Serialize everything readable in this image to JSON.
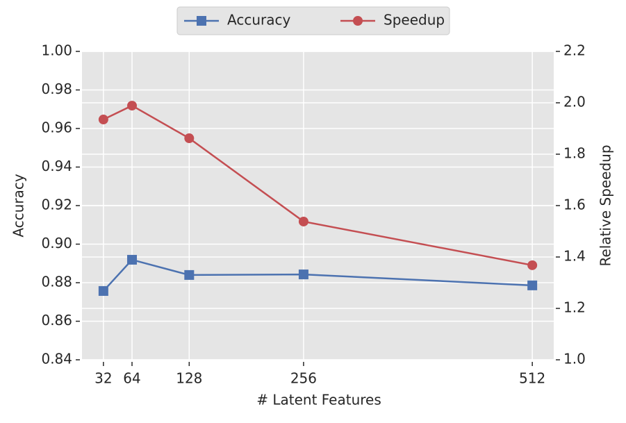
{
  "chart_data": {
    "type": "line",
    "x_label": "# Latent Features",
    "y_label": "Accuracy",
    "y2_label": "Relative Speedup",
    "x": [
      32,
      64,
      128,
      256,
      512
    ],
    "xlim": [
      8,
      536
    ],
    "xticks": [
      32,
      64,
      128,
      256,
      512
    ],
    "ylim": [
      0.84,
      1.0
    ],
    "yticks": [
      0.84,
      0.86,
      0.88,
      {
        "value": 0.9,
        "label": "0.90"
      },
      0.92,
      0.94,
      0.96,
      0.98,
      {
        "value": 1.0,
        "label": "1.00"
      }
    ],
    "y2lim": [
      1.0,
      2.2
    ],
    "y2ticks": [
      {
        "value": 1.0,
        "label": "1.0"
      },
      1.2,
      1.4,
      1.6,
      1.8,
      {
        "value": 2.0,
        "label": "2.0"
      },
      2.2
    ],
    "grid": true,
    "legend": "top",
    "series": [
      {
        "name": "Accuracy",
        "color": "#4c72b0",
        "marker": "square",
        "values": [
          0.8757,
          0.8919,
          0.884,
          0.8843,
          0.8786
        ]
      },
      {
        "name": "Speedup",
        "color": "#c44e52",
        "marker": "circle",
        "axis": "y2",
        "values": [
          1.935,
          1.989,
          1.862,
          1.538,
          1.368
        ]
      }
    ]
  }
}
